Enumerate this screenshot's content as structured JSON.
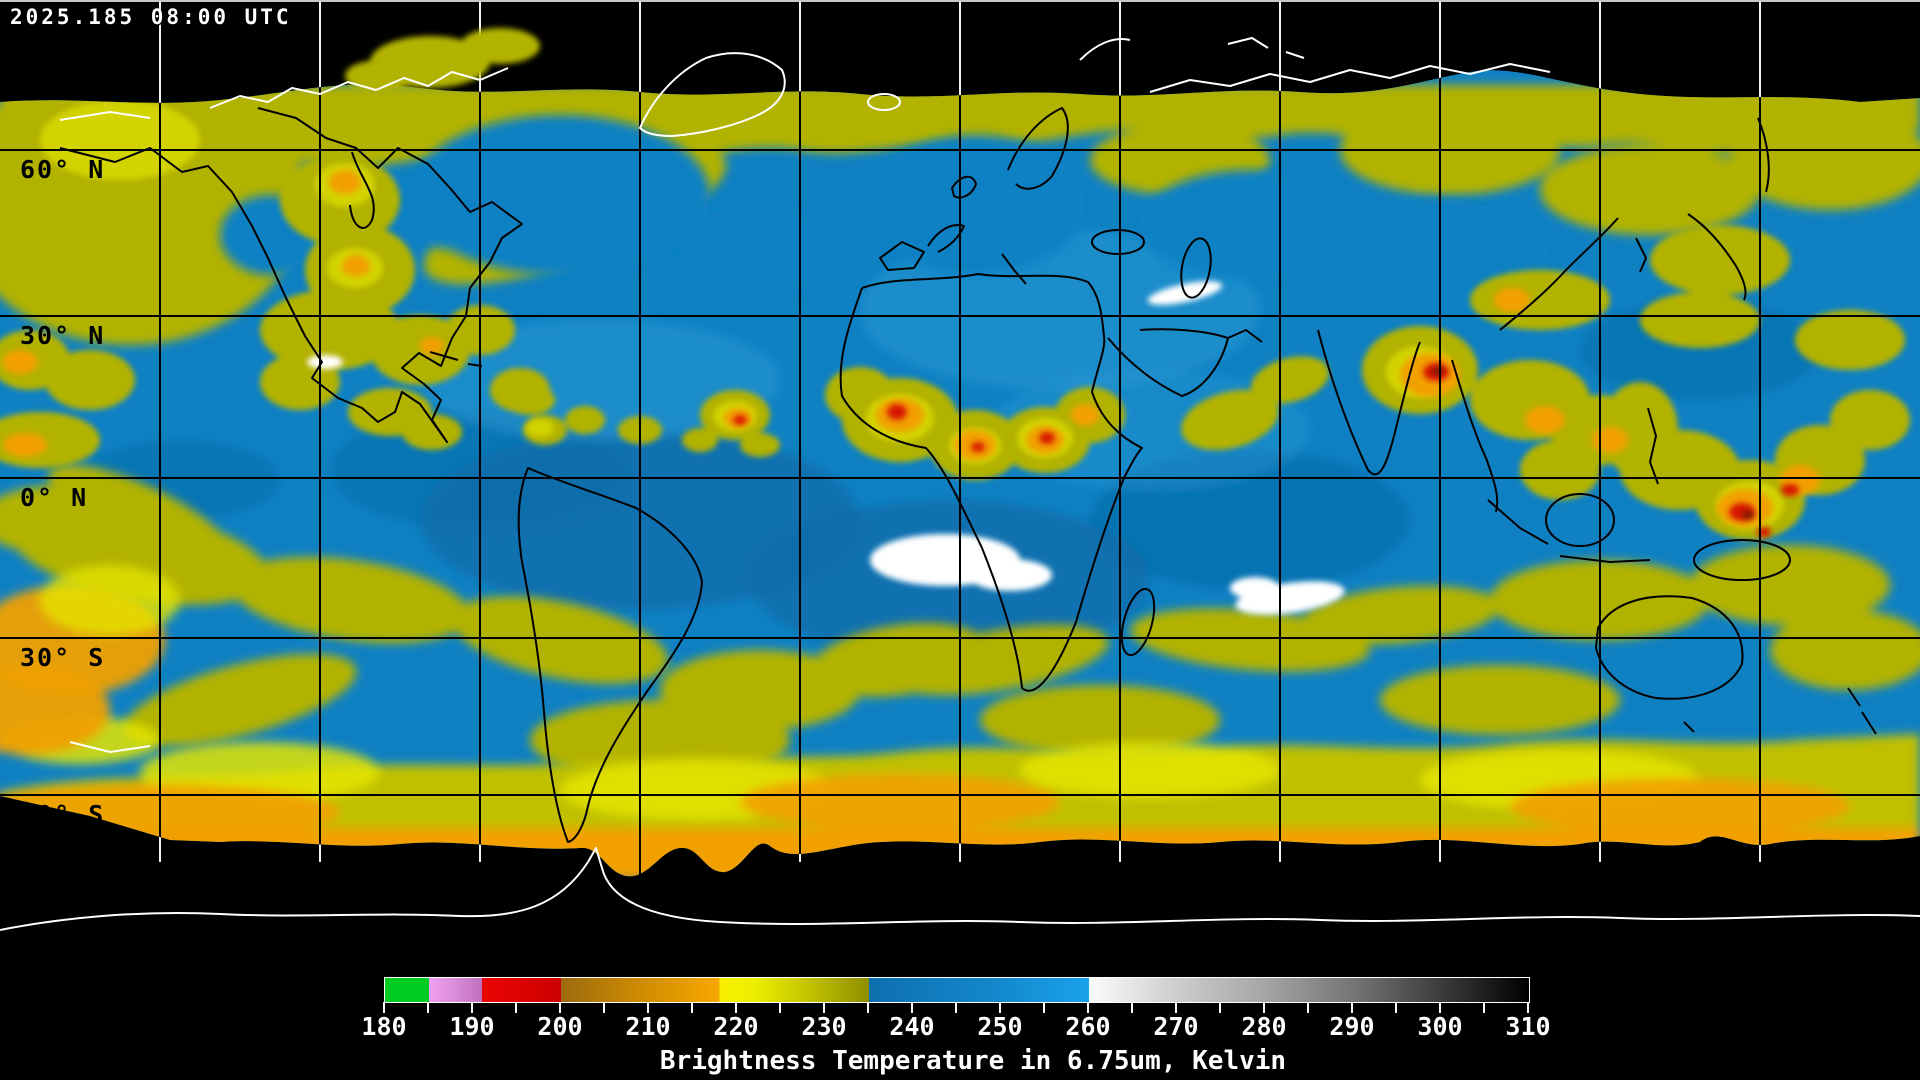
{
  "header": {
    "timestamp": "2025.185 08:00 UTC"
  },
  "map": {
    "latitude_labels": [
      "60° N",
      "30° N",
      "0° N",
      "30° S",
      "60° S"
    ],
    "graticule": {
      "lon_step_deg": 30,
      "lat_step_deg": 30
    },
    "colors": {
      "space": "#000000",
      "warm_clear_blue": "#0f81c3",
      "cold_cloud_olive": "#b2b200",
      "colder_cloud_orange": "#f2a000",
      "coldest_cloud_red": "#d81800",
      "warm_surface_white": "#ffffff"
    }
  },
  "colorbar": {
    "caption": "Brightness Temperature in 6.75um, Kelvin",
    "min": 180,
    "max": 310,
    "tick_step": 5,
    "label_step": 10,
    "tick_labels": [
      "180",
      "190",
      "200",
      "210",
      "220",
      "230",
      "240",
      "250",
      "260",
      "270",
      "280",
      "290",
      "300",
      "310"
    ],
    "stops": [
      {
        "v": 180,
        "c": "#00cc22"
      },
      {
        "v": 185,
        "c": "#00cc22"
      },
      {
        "v": 185,
        "c": "#ef9fef"
      },
      {
        "v": 188,
        "c": "#d98cd9"
      },
      {
        "v": 191,
        "c": "#bf6fbf"
      },
      {
        "v": 191,
        "c": "#ec0404"
      },
      {
        "v": 200,
        "c": "#cc0000"
      },
      {
        "v": 200,
        "c": "#9c6a10"
      },
      {
        "v": 209,
        "c": "#cf8c00"
      },
      {
        "v": 218,
        "c": "#f7a800"
      },
      {
        "v": 218,
        "c": "#f8f000"
      },
      {
        "v": 222,
        "c": "#eeee00"
      },
      {
        "v": 228,
        "c": "#c4c400"
      },
      {
        "v": 235,
        "c": "#8e8e00"
      },
      {
        "v": 235,
        "c": "#0e6fae"
      },
      {
        "v": 250,
        "c": "#1489ce"
      },
      {
        "v": 260,
        "c": "#1aa2ea"
      },
      {
        "v": 260,
        "c": "#fcfcfc"
      },
      {
        "v": 270,
        "c": "#cdcdcd"
      },
      {
        "v": 280,
        "c": "#a5a5a5"
      },
      {
        "v": 290,
        "c": "#757575"
      },
      {
        "v": 300,
        "c": "#3c3c3c"
      },
      {
        "v": 310,
        "c": "#000000"
      }
    ]
  }
}
